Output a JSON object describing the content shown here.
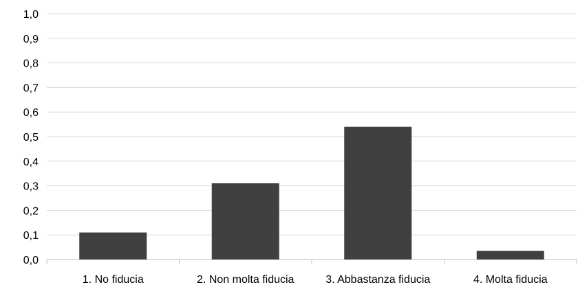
{
  "chart_data": {
    "type": "bar",
    "title": "",
    "xlabel": "",
    "ylabel": "",
    "categories": [
      "1. No fiducia",
      "2. Non molta fiducia",
      "3. Abbastanza fiducia",
      "4. Molta fiducia"
    ],
    "values": [
      0.11,
      0.31,
      0.54,
      0.035
    ],
    "ylim": [
      0,
      1
    ],
    "yticks": [
      "0,0",
      "0,1",
      "0,2",
      "0,3",
      "0,4",
      "0,5",
      "0,6",
      "0,7",
      "0,8",
      "0,9",
      "1,0"
    ],
    "grid": "horizontal",
    "legend": "none",
    "colors": {
      "bar": "#404040",
      "grid": "#d9d9d9",
      "axis": "#bfbfbf",
      "text": "#000000"
    }
  }
}
